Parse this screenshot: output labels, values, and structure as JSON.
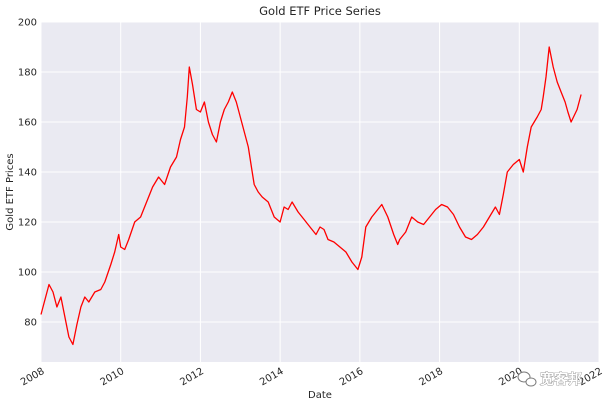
{
  "chart_data": {
    "type": "line",
    "title": "Gold ETF Price Series",
    "xlabel": "Date",
    "ylabel": "Gold ETF Prices",
    "xlim": [
      2008.0,
      2022.0
    ],
    "ylim": [
      64,
      200
    ],
    "grid": true,
    "x_ticks": [
      2008,
      2010,
      2012,
      2014,
      2016,
      2018,
      2020,
      2022
    ],
    "x_tick_labels": [
      "2008",
      "2010",
      "2012",
      "2014",
      "2016",
      "2018",
      "2020",
      "2022"
    ],
    "y_ticks": [
      80,
      100,
      120,
      140,
      160,
      180,
      200
    ],
    "y_tick_labels": [
      "80",
      "100",
      "120",
      "140",
      "160",
      "180",
      "200"
    ],
    "series": [
      {
        "color": "#ff0000",
        "x": [
          2008.0,
          2008.1,
          2008.2,
          2008.3,
          2008.4,
          2008.5,
          2008.6,
          2008.7,
          2008.8,
          2008.9,
          2009.0,
          2009.1,
          2009.2,
          2009.35,
          2009.5,
          2009.6,
          2009.75,
          2009.85,
          2009.95,
          2010.0,
          2010.1,
          2010.2,
          2010.35,
          2010.5,
          2010.65,
          2010.8,
          2010.95,
          2011.1,
          2011.25,
          2011.4,
          2011.5,
          2011.6,
          2011.67,
          2011.72,
          2011.8,
          2011.9,
          2012.0,
          2012.1,
          2012.2,
          2012.3,
          2012.4,
          2012.5,
          2012.6,
          2012.7,
          2012.8,
          2012.9,
          2013.0,
          2013.1,
          2013.2,
          2013.3,
          2013.35,
          2013.45,
          2013.55,
          2013.7,
          2013.85,
          2014.0,
          2014.1,
          2014.2,
          2014.3,
          2014.45,
          2014.6,
          2014.75,
          2014.9,
          2015.0,
          2015.1,
          2015.2,
          2015.35,
          2015.5,
          2015.65,
          2015.8,
          2015.95,
          2016.05,
          2016.15,
          2016.3,
          2016.45,
          2016.55,
          2016.7,
          2016.85,
          2016.95,
          2017.0,
          2017.15,
          2017.3,
          2017.45,
          2017.6,
          2017.75,
          2017.9,
          2018.05,
          2018.2,
          2018.35,
          2018.5,
          2018.65,
          2018.8,
          2018.95,
          2019.1,
          2019.25,
          2019.4,
          2019.5,
          2019.6,
          2019.7,
          2019.85,
          2020.0,
          2020.1,
          2020.2,
          2020.3,
          2020.45,
          2020.55,
          2020.6,
          2020.67,
          2020.75,
          2020.85,
          2020.95,
          2021.05,
          2021.15,
          2021.22,
          2021.3,
          2021.45,
          2021.55
        ],
        "y": [
          83,
          89,
          95,
          92,
          86,
          90,
          82,
          74,
          71,
          79,
          86,
          90,
          88,
          92,
          93,
          96,
          103,
          108,
          115,
          110,
          109,
          113,
          120,
          122,
          128,
          134,
          138,
          135,
          142,
          146,
          153,
          158,
          170,
          182,
          175,
          165,
          164,
          168,
          160,
          155,
          152,
          160,
          165,
          168,
          172,
          168,
          162,
          156,
          150,
          140,
          135,
          132,
          130,
          128,
          122,
          120,
          126,
          125,
          128,
          124,
          121,
          118,
          115,
          118,
          117,
          113,
          112,
          110,
          108,
          104,
          101,
          106,
          118,
          122,
          125,
          127,
          122,
          115,
          111,
          113,
          116,
          122,
          120,
          119,
          122,
          125,
          127,
          126,
          123,
          118,
          114,
          113,
          115,
          118,
          122,
          126,
          123,
          131,
          140,
          143,
          145,
          140,
          150,
          158,
          162,
          165,
          170,
          178,
          190,
          182,
          176,
          172,
          168,
          164,
          160,
          165,
          171
        ]
      }
    ]
  },
  "watermark": {
    "text": "宽客邦",
    "icon": "wechat-bubble-icon"
  }
}
